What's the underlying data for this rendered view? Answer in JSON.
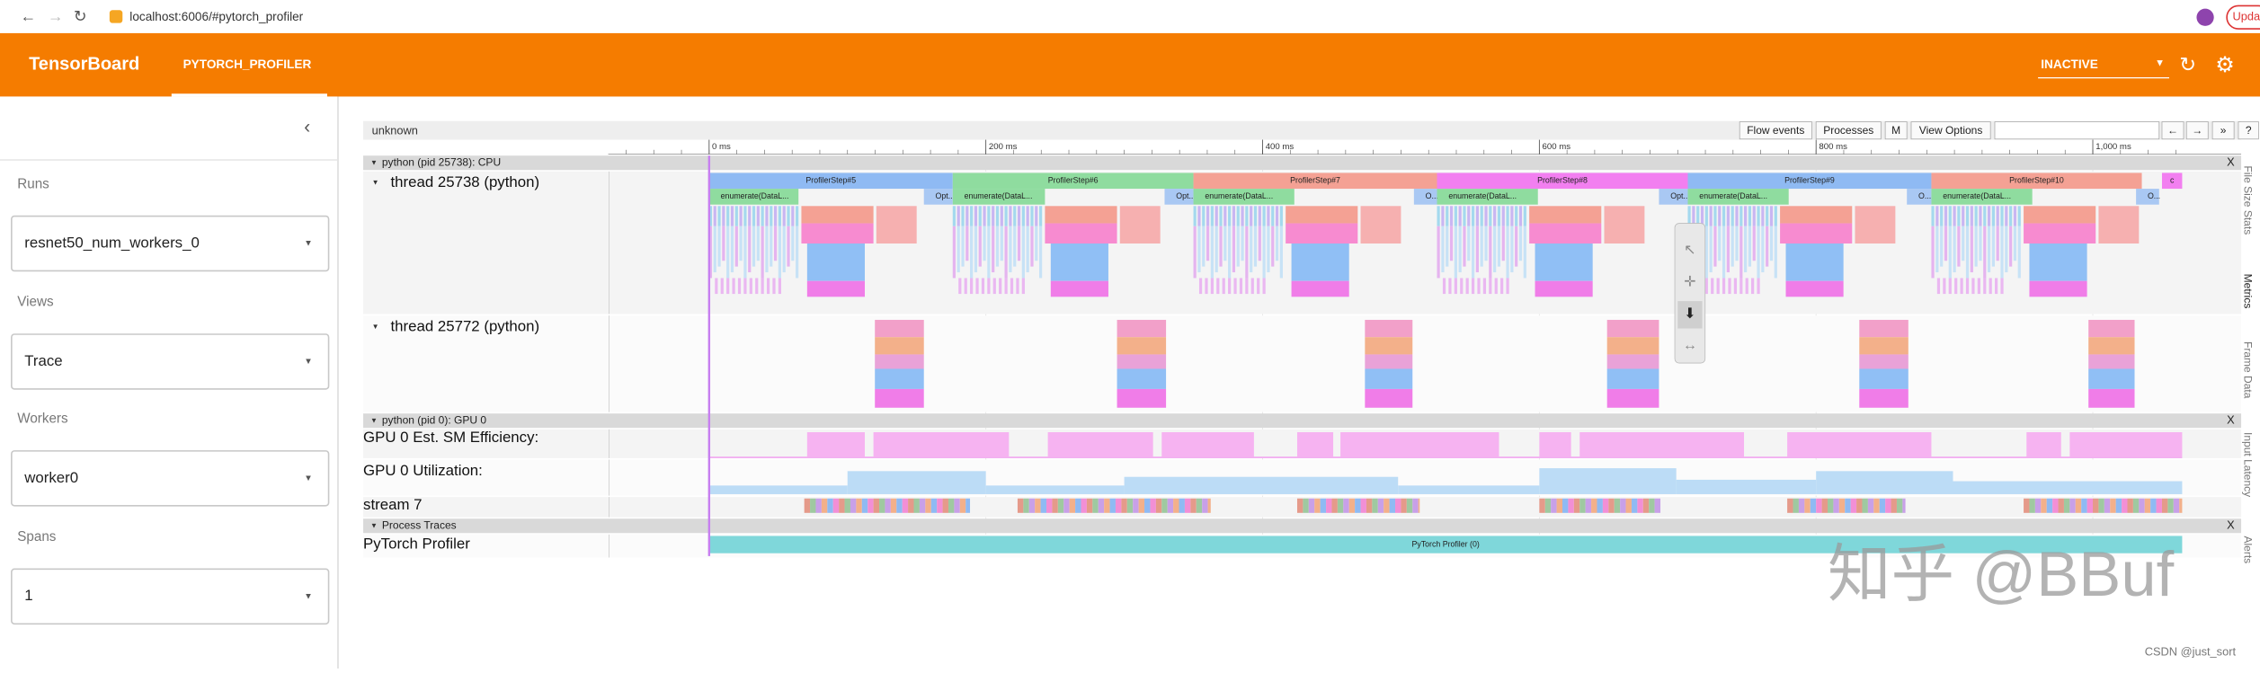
{
  "browser": {
    "url": "localhost:6006/#pytorch_profiler",
    "update_button": "Upda"
  },
  "header": {
    "title": "TensorBoard",
    "tab": "PYTORCH_PROFILER",
    "status": "INACTIVE"
  },
  "sidebar": {
    "fields": [
      {
        "label": "Runs",
        "value": "resnet50_num_workers_0"
      },
      {
        "label": "Views",
        "value": "Trace"
      },
      {
        "label": "Workers",
        "value": "worker0"
      },
      {
        "label": "Spans",
        "value": "1"
      }
    ]
  },
  "trace": {
    "title": "unknown",
    "buttons": [
      "Flow events",
      "Processes",
      "M",
      "View Options",
      "←",
      "→",
      "»",
      "?"
    ],
    "ruler": [
      "0 ms",
      "200 ms",
      "400 ms",
      "600 ms",
      "800 ms",
      "1,000 ms"
    ],
    "cpu_process": "python (pid 25738): CPU",
    "threads": [
      "thread 25738 (python)",
      "thread 25772 (python)"
    ],
    "steps": [
      "ProfilerStep#5",
      "ProfilerStep#6",
      "ProfilerStep#7",
      "ProfilerStep#8",
      "ProfilerStep#9",
      "ProfilerStep#10",
      "c"
    ],
    "sub_labels": [
      "enumerate(DataL...",
      "Opt...",
      "enumerate(DataL...",
      "Opt...",
      "enumerate(DataL...",
      "O...",
      "enumerate(DataL...",
      "Opt...",
      "enumerate(DataL...",
      "O...",
      "enumerate(DataL...",
      "O..."
    ],
    "gpu_process": "python (pid 0): GPU 0",
    "gpu_tracks": [
      "GPU 0 Est. SM Efficiency:",
      "GPU 0 Utilization:",
      "stream 7"
    ],
    "process_traces": "Process Traces",
    "profiler_track": "PyTorch Profiler",
    "profiler_event": "PyTorch Profiler (0)",
    "close": "X"
  },
  "side_tabs": [
    "File Size Stats",
    "Metrics",
    "Frame Data",
    "Input Latency",
    "Alerts"
  ],
  "watermark": {
    "main": "知乎 @BBuf",
    "credit": "CSDN @just_sort"
  }
}
